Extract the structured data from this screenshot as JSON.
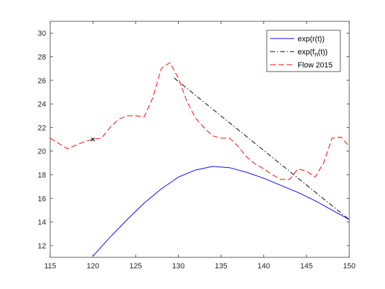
{
  "chart_data": {
    "type": "line",
    "title": "",
    "xlabel": "",
    "ylabel": "",
    "xlim": [
      115,
      150
    ],
    "ylim": [
      11,
      31
    ],
    "x_ticks": [
      115,
      120,
      125,
      130,
      135,
      140,
      145,
      150
    ],
    "y_ticks": [
      12,
      14,
      16,
      18,
      20,
      22,
      24,
      26,
      28,
      30
    ],
    "grid": false,
    "legend_position": "top-right",
    "series": [
      {
        "name": "exp(r(t))",
        "color": "#0000ff",
        "style": "solid",
        "x": [
          120,
          122,
          124,
          126,
          128,
          130,
          132,
          134,
          136,
          138,
          140,
          142,
          144,
          146,
          148,
          150
        ],
        "y": [
          11.1,
          12.7,
          14.2,
          15.6,
          16.8,
          17.8,
          18.4,
          18.7,
          18.6,
          18.2,
          17.7,
          17.1,
          16.5,
          15.8,
          15.0,
          14.2
        ]
      },
      {
        "name": "exp(f_n(t))",
        "color": "#000000",
        "style": "dashdot",
        "x": [
          129.5,
          150
        ],
        "y": [
          26.2,
          14.2
        ]
      },
      {
        "name": "Flow 2015",
        "color": "#ff0000",
        "style": "dashed",
        "x": [
          115,
          117,
          119,
          120,
          121,
          122,
          123,
          124,
          125,
          126,
          127,
          128,
          129,
          130,
          131,
          132,
          133,
          134,
          135,
          136,
          137,
          138,
          139,
          140,
          141,
          142,
          143,
          144,
          145,
          146,
          147,
          148,
          149,
          150
        ],
        "y": [
          21.1,
          20.2,
          20.8,
          21.0,
          21.1,
          22.0,
          22.7,
          23.0,
          23.0,
          22.9,
          24.5,
          27.0,
          27.5,
          26.2,
          24.2,
          22.8,
          22.0,
          21.3,
          21.1,
          21.1,
          20.4,
          19.5,
          18.9,
          18.5,
          18.0,
          17.6,
          17.6,
          18.5,
          18.3,
          17.8,
          19.0,
          21.1,
          21.2,
          20.4
        ]
      }
    ],
    "annotations": [
      {
        "marker": "x",
        "x": 120,
        "y": 21.0,
        "color": "#000000"
      }
    ]
  }
}
